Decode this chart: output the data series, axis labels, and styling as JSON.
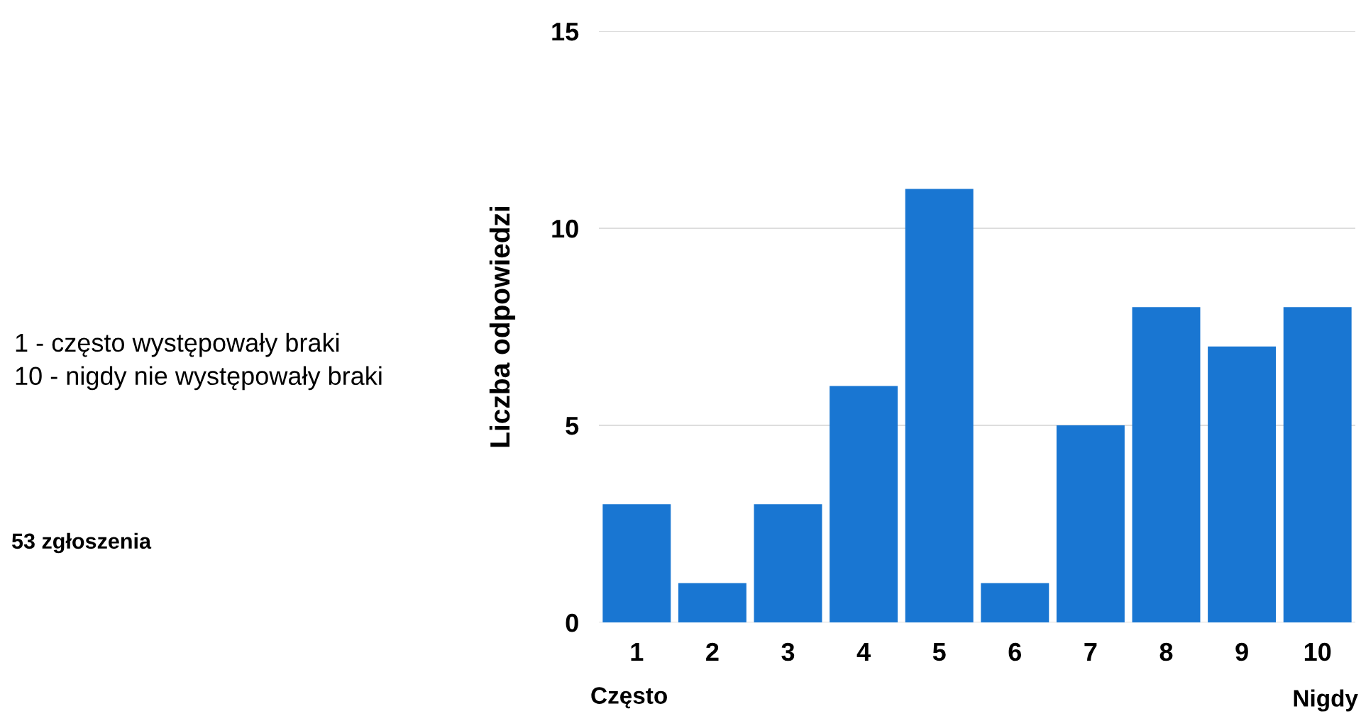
{
  "chart_data": {
    "type": "bar",
    "ylabel": "Liczba odpowiedzi",
    "categories": [
      "1",
      "2",
      "3",
      "4",
      "5",
      "6",
      "7",
      "8",
      "9",
      "10"
    ],
    "values": [
      3,
      1,
      3,
      6,
      11,
      1,
      5,
      8,
      7,
      8
    ],
    "color": "#1976d2",
    "ylim": [
      0,
      15
    ],
    "yticks": [
      0,
      5,
      10,
      15
    ],
    "grid": "y",
    "annotations": [
      "1 - często występowały braki\n10 - nigdy nie występowały braki",
      "53 zgłoszenia",
      "Często",
      "Nigdy"
    ]
  }
}
